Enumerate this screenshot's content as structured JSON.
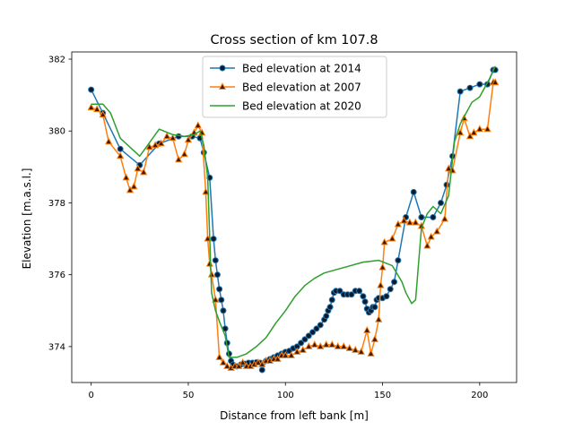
{
  "chart_data": {
    "type": "line",
    "title": "Cross section of km 107.8",
    "xlabel": "Distance from left bank [m]",
    "ylabel": "Elevation [m.a.s.l.]",
    "xlim": [
      -10,
      219
    ],
    "ylim": [
      373.0,
      382.2
    ],
    "xticks": [
      0,
      50,
      100,
      150,
      200
    ],
    "yticks": [
      374,
      376,
      378,
      380,
      382
    ],
    "grid": false,
    "legend_position": "upper center",
    "series": [
      {
        "name": "Bed elevation at 2014",
        "color": "#1f77b4",
        "marker": "circle",
        "marker_color": "#0b1a2e",
        "points": [
          [
            0,
            381.15
          ],
          [
            6,
            380.5
          ],
          [
            15,
            379.5
          ],
          [
            25,
            379.05
          ],
          [
            35,
            379.65
          ],
          [
            45,
            379.85
          ],
          [
            52,
            379.85
          ],
          [
            56,
            379.8
          ],
          [
            58,
            379.4
          ],
          [
            61,
            378.7
          ],
          [
            63,
            377.0
          ],
          [
            64,
            376.4
          ],
          [
            65,
            376.0
          ],
          [
            66,
            375.6
          ],
          [
            67,
            375.3
          ],
          [
            68,
            375.0
          ],
          [
            69,
            374.5
          ],
          [
            70,
            374.1
          ],
          [
            71,
            373.8
          ],
          [
            72,
            373.6
          ],
          [
            73,
            373.5
          ],
          [
            75,
            373.45
          ],
          [
            77,
            373.5
          ],
          [
            79,
            373.52
          ],
          [
            81,
            373.55
          ],
          [
            83,
            373.55
          ],
          [
            85,
            373.56
          ],
          [
            87,
            373.55
          ],
          [
            88,
            373.35
          ],
          [
            90,
            373.6
          ],
          [
            92,
            373.65
          ],
          [
            94,
            373.7
          ],
          [
            96,
            373.75
          ],
          [
            98,
            373.8
          ],
          [
            100,
            373.85
          ],
          [
            102,
            373.88
          ],
          [
            104,
            373.95
          ],
          [
            106,
            374.0
          ],
          [
            108,
            374.1
          ],
          [
            110,
            374.2
          ],
          [
            112,
            374.3
          ],
          [
            114,
            374.4
          ],
          [
            116,
            374.5
          ],
          [
            118,
            374.6
          ],
          [
            120,
            374.75
          ],
          [
            121,
            374.85
          ],
          [
            122,
            375.0
          ],
          [
            123,
            375.1
          ],
          [
            124,
            375.3
          ],
          [
            125,
            375.5
          ],
          [
            126,
            375.55
          ],
          [
            128,
            375.55
          ],
          [
            130,
            375.45
          ],
          [
            132,
            375.45
          ],
          [
            134,
            375.45
          ],
          [
            136,
            375.55
          ],
          [
            138,
            375.55
          ],
          [
            140,
            375.4
          ],
          [
            141,
            375.25
          ],
          [
            142,
            375.05
          ],
          [
            143,
            374.95
          ],
          [
            144,
            375.0
          ],
          [
            145,
            375.1
          ],
          [
            146,
            375.1
          ],
          [
            147,
            375.3
          ],
          [
            148,
            375.35
          ],
          [
            150,
            375.35
          ],
          [
            152,
            375.4
          ],
          [
            154,
            375.6
          ],
          [
            156,
            375.8
          ],
          [
            158,
            376.4
          ],
          [
            162,
            377.6
          ],
          [
            166,
            378.3
          ],
          [
            170,
            377.6
          ],
          [
            176,
            377.6
          ],
          [
            180,
            378.0
          ],
          [
            183,
            378.5
          ],
          [
            186,
            379.3
          ],
          [
            190,
            381.1
          ],
          [
            195,
            381.2
          ],
          [
            200,
            381.3
          ],
          [
            204,
            381.3
          ],
          [
            207,
            381.7
          ],
          [
            208,
            381.7
          ]
        ]
      },
      {
        "name": "Bed elevation at 2007",
        "color": "#ff7f0e",
        "marker": "triangle",
        "marker_color": "#3a1a00",
        "points": [
          [
            0,
            380.65
          ],
          [
            3,
            380.6
          ],
          [
            6,
            380.45
          ],
          [
            9,
            379.7
          ],
          [
            15,
            379.3
          ],
          [
            18,
            378.7
          ],
          [
            20,
            378.35
          ],
          [
            22,
            378.45
          ],
          [
            24,
            378.95
          ],
          [
            27,
            378.85
          ],
          [
            30,
            379.55
          ],
          [
            33,
            379.6
          ],
          [
            36,
            379.65
          ],
          [
            39,
            379.85
          ],
          [
            42,
            379.8
          ],
          [
            45,
            379.2
          ],
          [
            48,
            379.35
          ],
          [
            50,
            379.75
          ],
          [
            53,
            379.95
          ],
          [
            55,
            380.15
          ],
          [
            57,
            379.95
          ],
          [
            59,
            378.3
          ],
          [
            60,
            377.0
          ],
          [
            61,
            376.3
          ],
          [
            62,
            376.0
          ],
          [
            64,
            375.3
          ],
          [
            66,
            373.7
          ],
          [
            68,
            373.55
          ],
          [
            70,
            373.45
          ],
          [
            72,
            373.4
          ],
          [
            74,
            373.45
          ],
          [
            76,
            373.45
          ],
          [
            78,
            373.55
          ],
          [
            80,
            373.45
          ],
          [
            82,
            373.45
          ],
          [
            84,
            373.5
          ],
          [
            86,
            373.55
          ],
          [
            88,
            373.5
          ],
          [
            90,
            373.6
          ],
          [
            92,
            373.6
          ],
          [
            94,
            373.65
          ],
          [
            96,
            373.65
          ],
          [
            98,
            373.75
          ],
          [
            100,
            373.75
          ],
          [
            103,
            373.75
          ],
          [
            106,
            373.85
          ],
          [
            109,
            373.9
          ],
          [
            112,
            374.0
          ],
          [
            115,
            374.05
          ],
          [
            118,
            374.0
          ],
          [
            121,
            374.05
          ],
          [
            124,
            374.05
          ],
          [
            127,
            374.0
          ],
          [
            130,
            374.0
          ],
          [
            133,
            373.95
          ],
          [
            136,
            373.9
          ],
          [
            139,
            373.85
          ],
          [
            142,
            374.45
          ],
          [
            144,
            373.8
          ],
          [
            146,
            374.2
          ],
          [
            148,
            374.75
          ],
          [
            149,
            375.7
          ],
          [
            150,
            376.2
          ],
          [
            151,
            376.9
          ],
          [
            155,
            377.0
          ],
          [
            158,
            377.4
          ],
          [
            161,
            377.5
          ],
          [
            164,
            377.45
          ],
          [
            167,
            377.45
          ],
          [
            170,
            377.35
          ],
          [
            173,
            376.8
          ],
          [
            175,
            377.05
          ],
          [
            178,
            377.2
          ],
          [
            182,
            377.55
          ],
          [
            184,
            378.95
          ],
          [
            186,
            378.9
          ],
          [
            190,
            379.95
          ],
          [
            192,
            380.35
          ],
          [
            195,
            379.85
          ],
          [
            197,
            379.95
          ],
          [
            200,
            380.05
          ],
          [
            204,
            380.05
          ],
          [
            207,
            381.35
          ],
          [
            208,
            381.35
          ]
        ]
      },
      {
        "name": "Bed elevation at 2020",
        "color": "#2ca02c",
        "marker": "none",
        "points": [
          [
            0,
            380.75
          ],
          [
            6,
            380.75
          ],
          [
            10,
            380.5
          ],
          [
            15,
            379.8
          ],
          [
            25,
            379.3
          ],
          [
            35,
            380.05
          ],
          [
            42,
            379.9
          ],
          [
            48,
            379.85
          ],
          [
            53,
            379.9
          ],
          [
            56,
            380.0
          ],
          [
            58,
            379.6
          ],
          [
            60,
            378.7
          ],
          [
            62,
            375.5
          ],
          [
            64,
            375.0
          ],
          [
            66,
            374.7
          ],
          [
            69,
            374.3
          ],
          [
            71,
            373.7
          ],
          [
            75,
            373.7
          ],
          [
            80,
            373.8
          ],
          [
            85,
            374.0
          ],
          [
            90,
            374.25
          ],
          [
            95,
            374.65
          ],
          [
            100,
            375.0
          ],
          [
            105,
            375.4
          ],
          [
            110,
            375.7
          ],
          [
            115,
            375.9
          ],
          [
            120,
            376.05
          ],
          [
            130,
            376.2
          ],
          [
            140,
            376.35
          ],
          [
            148,
            376.4
          ],
          [
            155,
            376.25
          ],
          [
            160,
            375.8
          ],
          [
            162,
            375.5
          ],
          [
            165,
            375.2
          ],
          [
            167,
            375.3
          ],
          [
            170,
            377.3
          ],
          [
            173,
            377.7
          ],
          [
            176,
            377.9
          ],
          [
            180,
            377.7
          ],
          [
            184,
            378.2
          ],
          [
            187,
            379.7
          ],
          [
            190,
            380.2
          ],
          [
            196,
            380.8
          ],
          [
            200,
            380.95
          ],
          [
            205,
            381.45
          ],
          [
            208,
            381.8
          ]
        ]
      }
    ]
  }
}
